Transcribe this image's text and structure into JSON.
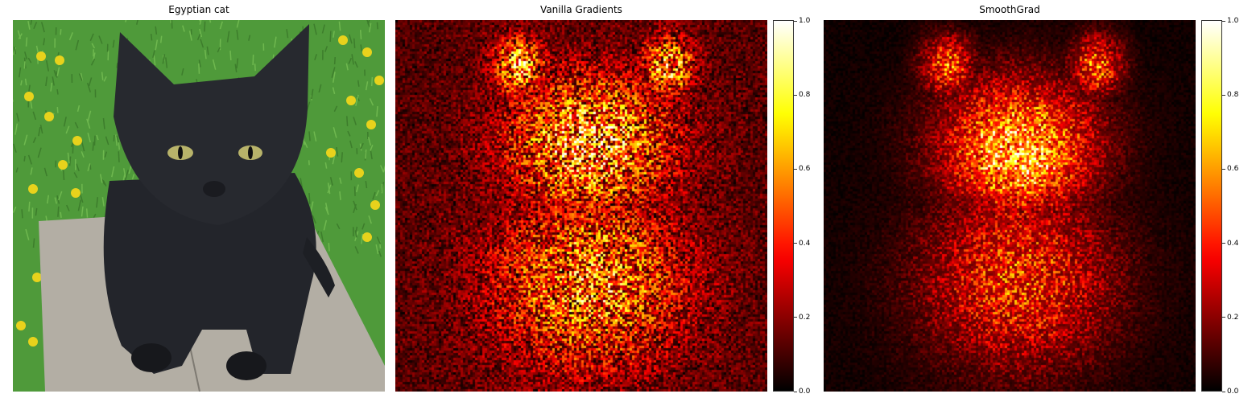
{
  "panels": [
    {
      "title": "Egyptian cat"
    },
    {
      "title": "Vanilla Gradients"
    },
    {
      "title": "SmoothGrad"
    }
  ],
  "chart_data": [
    {
      "type": "heatmap",
      "title": "Vanilla Gradients",
      "colormap": "hot",
      "colorbar": {
        "ticks": [
          0.0,
          0.2,
          0.4,
          0.6,
          0.8,
          1.0
        ],
        "labels": [
          "0.0",
          "0.2",
          "0.4",
          "0.6",
          "0.8",
          "1.0"
        ],
        "range": [
          0,
          1
        ]
      }
    },
    {
      "type": "heatmap",
      "title": "SmoothGrad",
      "colormap": "hot",
      "colorbar": {
        "ticks": [
          0.0,
          0.2,
          0.4,
          0.6,
          0.8,
          1.0
        ],
        "labels": [
          "0.0",
          "0.2",
          "0.4",
          "0.6",
          "0.8",
          "1.0"
        ],
        "range": [
          0,
          1
        ]
      }
    }
  ],
  "colors": {
    "grass": "#4f9a3a",
    "flowers": "#e8d21c",
    "board": "#b3aea4",
    "cat": "#23252b",
    "eyes": "#b8b36a"
  }
}
